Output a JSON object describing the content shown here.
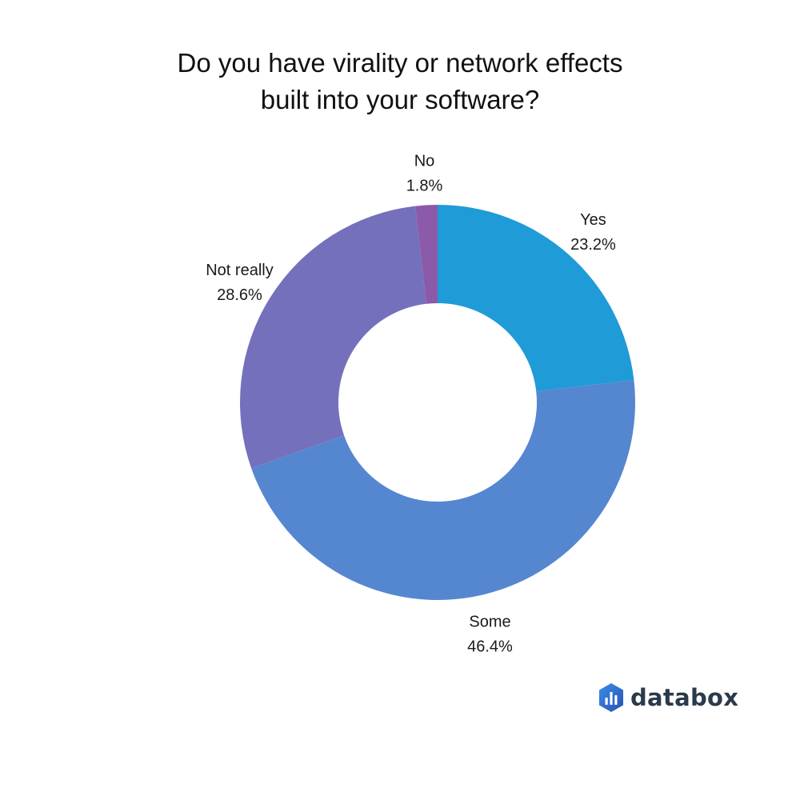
{
  "chart_data": {
    "type": "pie",
    "variant": "donut",
    "title_lines": [
      "Do you have virality or network effects",
      "built into your software?"
    ],
    "slices": [
      {
        "label": "Yes",
        "value": 23.2,
        "display": "23.2%",
        "color": "#1f9bd7"
      },
      {
        "label": "Some",
        "value": 46.4,
        "display": "46.4%",
        "color": "#5587d1"
      },
      {
        "label": "Not really",
        "value": 28.6,
        "display": "28.6%",
        "color": "#7570bc"
      },
      {
        "label": "No",
        "value": 1.8,
        "display": "1.8%",
        "color": "#8b5aa8"
      }
    ],
    "start": "12 o'clock",
    "direction": "clockwise",
    "legend": "none"
  },
  "branding": {
    "name": "databox",
    "logo_icon": "databox-hexagon-bars-icon",
    "logo_color": "#2f6fd6"
  }
}
